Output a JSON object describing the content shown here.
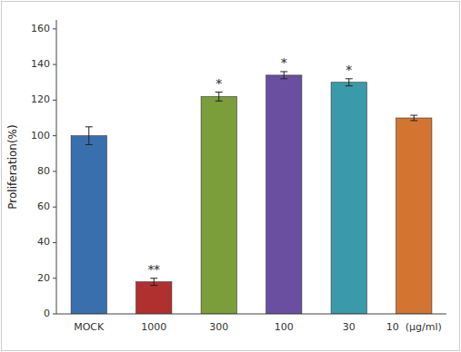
{
  "chart_data": {
    "type": "bar",
    "categories": [
      "MOCK",
      "1000",
      "300",
      "100",
      "30",
      "10  (μg/ml)"
    ],
    "values": [
      100.0,
      18.0,
      122.0,
      134.0,
      130.0,
      110.0
    ],
    "errors": [
      5.0,
      2.0,
      2.5,
      2.0,
      2.0,
      1.5
    ],
    "colors": [
      "#3a6fad",
      "#b03030",
      "#7b9e3a",
      "#6a4fa0",
      "#3a9aaa",
      "#d27530"
    ],
    "significance": [
      null,
      "**",
      "*",
      "*",
      "*",
      null
    ],
    "ylabel": "Proliferation(%)",
    "ylim": [
      0,
      165
    ],
    "yticks": [
      0,
      20,
      40,
      60,
      80,
      100,
      120,
      140,
      160
    ],
    "grid": false
  }
}
